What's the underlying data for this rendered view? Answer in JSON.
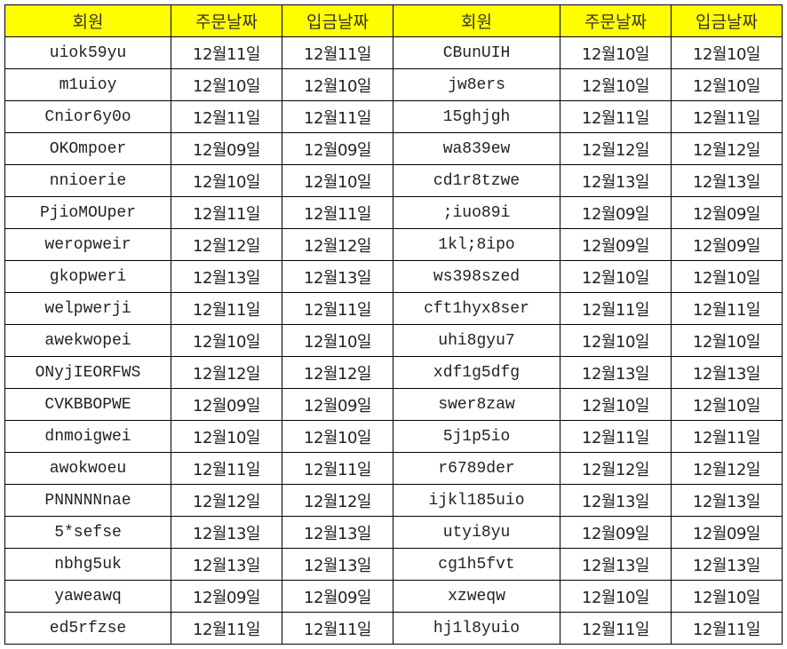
{
  "headers": [
    "회원",
    "주문날짜",
    "입금날짜",
    "회원",
    "주문날짜",
    "입금날짜"
  ],
  "header_color": "#ffff00",
  "rows": [
    [
      "uiok59yu",
      "12월11일",
      "12월11일",
      "CBunUIH",
      "12월10일",
      "12월10일"
    ],
    [
      "m1uioy",
      "12월10일",
      "12월10일",
      "jw8ers",
      "12월10일",
      "12월10일"
    ],
    [
      "Cnior6y0o",
      "12월11일",
      "12월11일",
      "15ghjgh",
      "12월11일",
      "12월11일"
    ],
    [
      "OKOmpoer",
      "12월09일",
      "12월09일",
      "wa839ew",
      "12월12일",
      "12월12일"
    ],
    [
      "nnioerie",
      "12월10일",
      "12월10일",
      "cd1r8tzwe",
      "12월13일",
      "12월13일"
    ],
    [
      "PjioMOUper",
      "12월11일",
      "12월11일",
      ";iuo89i",
      "12월09일",
      "12월09일"
    ],
    [
      "weropweir",
      "12월12일",
      "12월12일",
      "1kl;8ipo",
      "12월09일",
      "12월09일"
    ],
    [
      "gkopweri",
      "12월13일",
      "12월13일",
      "ws398szed",
      "12월10일",
      "12월10일"
    ],
    [
      "welpwerji",
      "12월11일",
      "12월11일",
      "cft1hyx8ser",
      "12월11일",
      "12월11일"
    ],
    [
      "awekwopei",
      "12월10일",
      "12월10일",
      "uhi8gyu7",
      "12월10일",
      "12월10일"
    ],
    [
      "ONyjIEORFWS",
      "12월12일",
      "12월12일",
      "xdf1g5dfg",
      "12월13일",
      "12월13일"
    ],
    [
      "CVKBBOPWE",
      "12월09일",
      "12월09일",
      "swer8zaw",
      "12월10일",
      "12월10일"
    ],
    [
      "dnmoigwei",
      "12월10일",
      "12월10일",
      "5j1p5io",
      "12월11일",
      "12월11일"
    ],
    [
      "awokwoeu",
      "12월11일",
      "12월11일",
      "r6789der",
      "12월12일",
      "12월12일"
    ],
    [
      "PNNNNNnae",
      "12월12일",
      "12월12일",
      "ijkl185uio",
      "12월13일",
      "12월13일"
    ],
    [
      "5*sefse",
      "12월13일",
      "12월13일",
      "utyi8yu",
      "12월09일",
      "12월09일"
    ],
    [
      "nbhg5uk",
      "12월13일",
      "12월13일",
      "cg1h5fvt",
      "12월13일",
      "12월13일"
    ],
    [
      "yaweawq",
      "12월09일",
      "12월09일",
      "xzweqw",
      "12월10일",
      "12월10일"
    ],
    [
      "ed5rfzse",
      "12월11일",
      "12월11일",
      "hj1l8yuio",
      "12월11일",
      "12월11일"
    ]
  ]
}
